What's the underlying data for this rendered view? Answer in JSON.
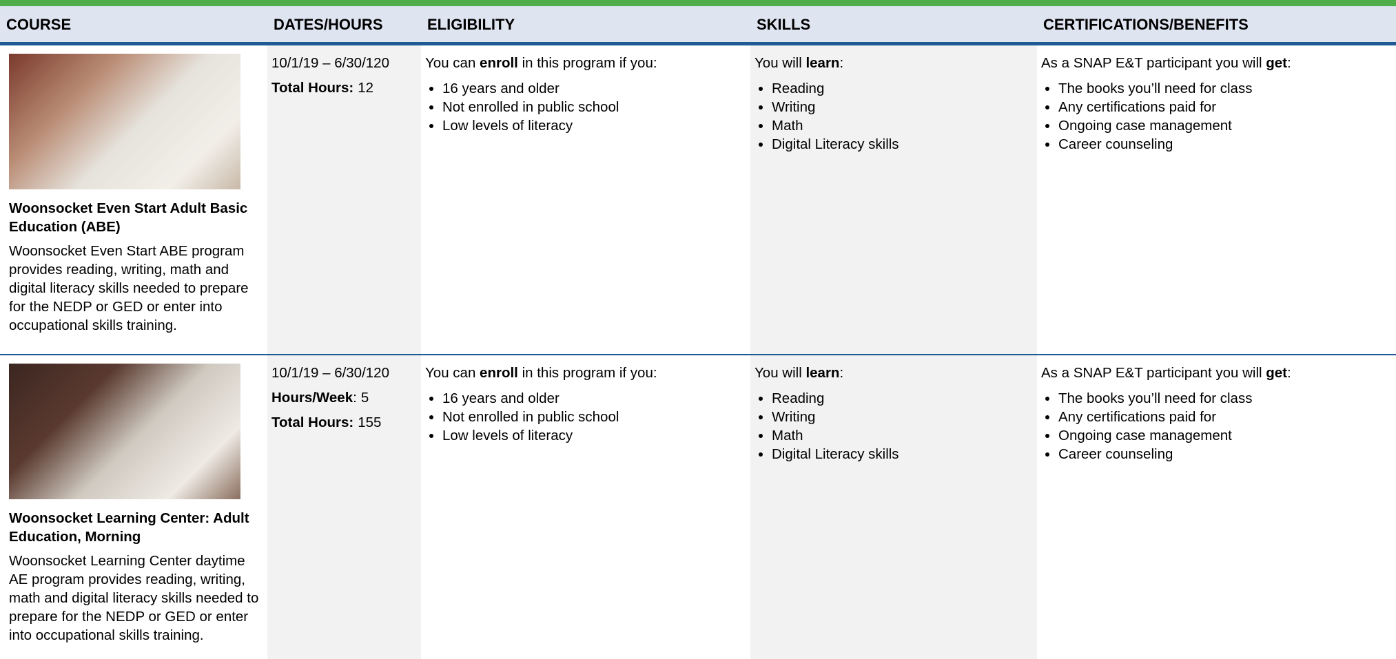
{
  "header": {
    "columns": [
      "COURSE",
      "DATES/HOURS",
      "ELIGIBILITY",
      "SKILLS",
      "CERTIFICATIONS/BENEFITS"
    ]
  },
  "rows": [
    {
      "course_title": "Woonsocket Even Start Adult Basic Education (ABE)",
      "course_description": "Woonsocket Even Start ABE program provides reading, writing, math and digital literacy skills needed to prepare for the NEDP or GED or enter into occupational skills training.",
      "dates": "10/1/19 – 6/30/120",
      "hours": [
        {
          "label": "Total Hours:",
          "value": 12
        }
      ],
      "eligibility": {
        "intro": [
          "You can ",
          "enroll",
          " in this program if you:"
        ],
        "items": [
          "16 years and older",
          "Not enrolled in public school",
          "Low levels of literacy"
        ]
      },
      "skills": {
        "intro": [
          "You will ",
          "learn",
          ":"
        ],
        "items": [
          "Reading",
          "Writing",
          "Math",
          "Digital Literacy skills"
        ]
      },
      "benefits": {
        "intro": [
          "As a SNAP E&T participant you will ",
          "get",
          ":"
        ],
        "items": [
          "The books you’ll need for class",
          "Any certifications paid for",
          "Ongoing case management",
          "Career counseling"
        ]
      }
    },
    {
      "course_title": "Woonsocket Learning Center: Adult Education, Morning",
      "course_description": "Woonsocket Learning Center daytime AE program provides reading, writing, math and digital literacy skills needed to prepare for the NEDP or GED or enter into occupational skills training.",
      "dates": "10/1/19 – 6/30/120",
      "hours": [
        {
          "label": "Hours/Week",
          "sep": ":",
          "value": 5
        },
        {
          "label": "Total Hours:",
          "value": 155
        }
      ],
      "eligibility": {
        "intro": [
          "You can ",
          "enroll",
          " in this program if you:"
        ],
        "items": [
          "16 years and older",
          "Not enrolled in public school",
          "Low levels of literacy"
        ]
      },
      "skills": {
        "intro": [
          "You will ",
          "learn",
          ":"
        ],
        "items": [
          "Reading",
          "Writing",
          "Math",
          "Digital Literacy skills"
        ]
      },
      "benefits": {
        "intro": [
          "As a SNAP E&T participant you will ",
          "get",
          ":"
        ],
        "items": [
          "The books you’ll need for class",
          "Any certifications paid for",
          "Ongoing case management",
          "Career counseling"
        ]
      }
    }
  ]
}
